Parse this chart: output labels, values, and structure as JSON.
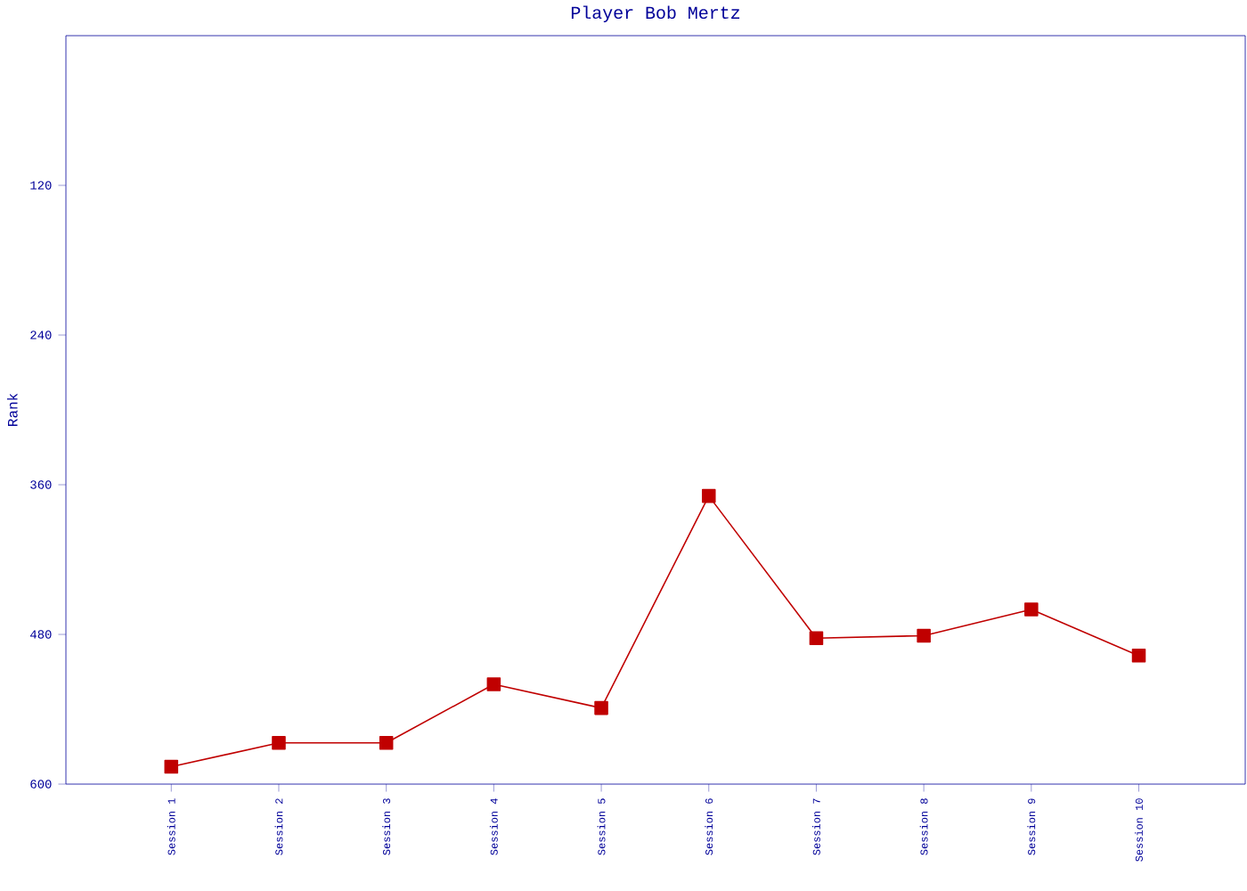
{
  "chart_data": {
    "type": "line",
    "title": "Player Bob Mertz",
    "ylabel": "Rank",
    "categories": [
      "Session 1",
      "Session 2",
      "Session 3",
      "Session 4",
      "Session 5",
      "Session 6",
      "Session 7",
      "Session 8",
      "Session 9",
      "Session 10"
    ],
    "series": [
      {
        "color": "#c00000",
        "values": [
          586,
          567,
          567,
          520,
          539,
          369,
          483,
          481,
          460,
          497
        ]
      }
    ],
    "ylim": [
      600,
      0
    ],
    "yticks": [
      120,
      240,
      360,
      480,
      600
    ],
    "marker": "square",
    "line_style": "solid",
    "grid": false
  }
}
